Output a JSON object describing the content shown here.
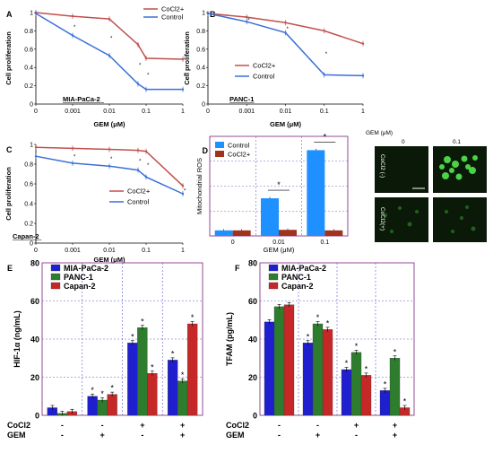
{
  "colors": {
    "red": "#c0504d",
    "blue": "#3a6fd8",
    "bar_blue": "#1f1fcf",
    "bar_green": "#2e7d2e",
    "bar_red": "#c62828",
    "d_blue": "#1e90ff",
    "d_red": "#a0321e",
    "micro_bg": "#0b1a08",
    "micro_cell": "#4fdc4a"
  },
  "chart_data": [
    {
      "id": "A",
      "type": "line",
      "panel_label": "A",
      "inset_label": "MIA-PaCa-2",
      "xlabel": "GEM (μM)",
      "ylabel": "Cell proliferation",
      "x_ticks": [
        "0",
        "0.001",
        "0.01",
        "0.1",
        "1"
      ],
      "y_ticks": [
        "0",
        "0.2",
        "0.4",
        "0.6",
        "0.8",
        "1"
      ],
      "ylim": [
        0,
        1
      ],
      "legend_position": "top-right",
      "x": [
        0,
        0.001,
        0.01,
        0.05,
        0.1,
        1
      ],
      "series": [
        {
          "name": "CoCl2+",
          "color_key": "red",
          "values": [
            1.0,
            0.96,
            0.93,
            0.65,
            0.5,
            0.49
          ]
        },
        {
          "name": "Control",
          "color_key": "blue",
          "values": [
            0.99,
            0.75,
            0.53,
            0.22,
            0.16,
            0.16
          ]
        }
      ],
      "annotations": [
        "*",
        "*",
        "*",
        "*",
        "*",
        "*",
        "*"
      ]
    },
    {
      "id": "B",
      "type": "line",
      "panel_label": "B",
      "inset_label": "PANC-1",
      "xlabel": "GEM (μM)",
      "ylabel": "Cell proliferation",
      "x_ticks": [
        "0",
        "0.001",
        "0.01",
        "0.1",
        "1"
      ],
      "y_ticks": [
        "0",
        "0.2",
        "0.4",
        "0.6",
        "0.8",
        "1"
      ],
      "ylim": [
        0,
        1
      ],
      "legend_position": "center-right",
      "x": [
        0,
        0.001,
        0.01,
        0.1,
        1
      ],
      "series": [
        {
          "name": "CoCl2+",
          "color_key": "red",
          "values": [
            0.99,
            0.95,
            0.89,
            0.8,
            0.66
          ]
        },
        {
          "name": "Control",
          "color_key": "blue",
          "values": [
            0.99,
            0.9,
            0.78,
            0.32,
            0.31
          ]
        }
      ],
      "annotations": [
        "*",
        "*",
        "*"
      ]
    },
    {
      "id": "C",
      "type": "line",
      "panel_label": "C",
      "inset_label": "Capan-2",
      "xlabel": "GEM (μM)",
      "ylabel": "Cell proliferation",
      "x_ticks": [
        "0",
        "0.001",
        "0.01",
        "0.1",
        "1"
      ],
      "y_ticks": [
        "0",
        "0.2",
        "0.4",
        "0.6",
        "0.8",
        "1"
      ],
      "ylim": [
        0,
        1
      ],
      "legend_position": "center-right",
      "x": [
        0,
        0.001,
        0.01,
        0.05,
        0.1,
        1
      ],
      "series": [
        {
          "name": "CoCl2+",
          "color_key": "red",
          "values": [
            0.97,
            0.96,
            0.95,
            0.94,
            0.93,
            0.58
          ]
        },
        {
          "name": "Control",
          "color_key": "blue",
          "values": [
            0.88,
            0.81,
            0.78,
            0.74,
            0.67,
            0.5
          ]
        }
      ],
      "annotations": [
        "*",
        "*",
        "*",
        "*",
        "*"
      ]
    },
    {
      "id": "D",
      "type": "bar",
      "panel_label": "D",
      "xlabel": "GEM (μM)",
      "ylabel": "Mitochondrial ROS",
      "categories": [
        "0",
        "0.01",
        "0.1"
      ],
      "ylim": [
        0,
        18
      ],
      "legend_position": "top-left",
      "series": [
        {
          "name": "Control",
          "color_key": "d_blue",
          "values": [
            1.0,
            6.8,
            15.5
          ]
        },
        {
          "name": "CoCl2+",
          "color_key": "d_red",
          "values": [
            1.0,
            1.1,
            1.0
          ]
        }
      ],
      "annotations": [
        "*",
        "*"
      ]
    },
    {
      "id": "E",
      "type": "bar",
      "panel_label": "E",
      "ylabel": "HIF-1α (ng/mL)",
      "y_ticks": [
        "0",
        "20",
        "40",
        "60",
        "80"
      ],
      "ylim": [
        0,
        80
      ],
      "legend_position": "top-left",
      "row_labels": [
        "CoCl2",
        "GEM"
      ],
      "conditions": [
        [
          "-",
          "-"
        ],
        [
          "-",
          "+"
        ],
        [
          "+",
          "-"
        ],
        [
          "+",
          "+"
        ]
      ],
      "series": [
        {
          "name": "MIA-PaCa-2",
          "color_key": "bar_blue",
          "values": [
            4,
            10,
            38,
            29
          ]
        },
        {
          "name": "PANC-1",
          "color_key": "bar_green",
          "values": [
            1,
            8,
            46,
            18
          ]
        },
        {
          "name": "Capan-2",
          "color_key": "bar_red",
          "values": [
            2,
            11,
            22,
            48
          ]
        }
      ],
      "stars": [
        [
          false,
          false,
          false
        ],
        [
          true,
          true,
          true
        ],
        [
          true,
          true,
          true
        ],
        [
          true,
          true,
          true
        ]
      ]
    },
    {
      "id": "F",
      "type": "bar",
      "panel_label": "F",
      "ylabel": "TFAM (pg/mL)",
      "y_ticks": [
        "0",
        "20",
        "40",
        "60",
        "80"
      ],
      "ylim": [
        0,
        80
      ],
      "legend_position": "top-left",
      "row_labels": [
        "CoCl2",
        "GEM"
      ],
      "conditions": [
        [
          "-",
          "-"
        ],
        [
          "-",
          "+"
        ],
        [
          "+",
          "-"
        ],
        [
          "+",
          "+"
        ]
      ],
      "series": [
        {
          "name": "MIA-PaCa-2",
          "color_key": "bar_blue",
          "values": [
            49,
            38,
            24,
            13
          ]
        },
        {
          "name": "PANC-1",
          "color_key": "bar_green",
          "values": [
            57,
            48,
            33,
            30
          ]
        },
        {
          "name": "Capan-2",
          "color_key": "bar_red",
          "values": [
            58,
            45,
            21,
            4
          ]
        }
      ],
      "stars": [
        [
          false,
          false,
          false
        ],
        [
          true,
          true,
          true
        ],
        [
          true,
          true,
          true
        ],
        [
          true,
          true,
          true
        ]
      ]
    }
  ],
  "micrographs": {
    "title": "GEM (μM)",
    "columns": [
      "0",
      "0.1"
    ],
    "rows": [
      "CoCl2 (-)",
      "CoCl2(+)"
    ]
  }
}
